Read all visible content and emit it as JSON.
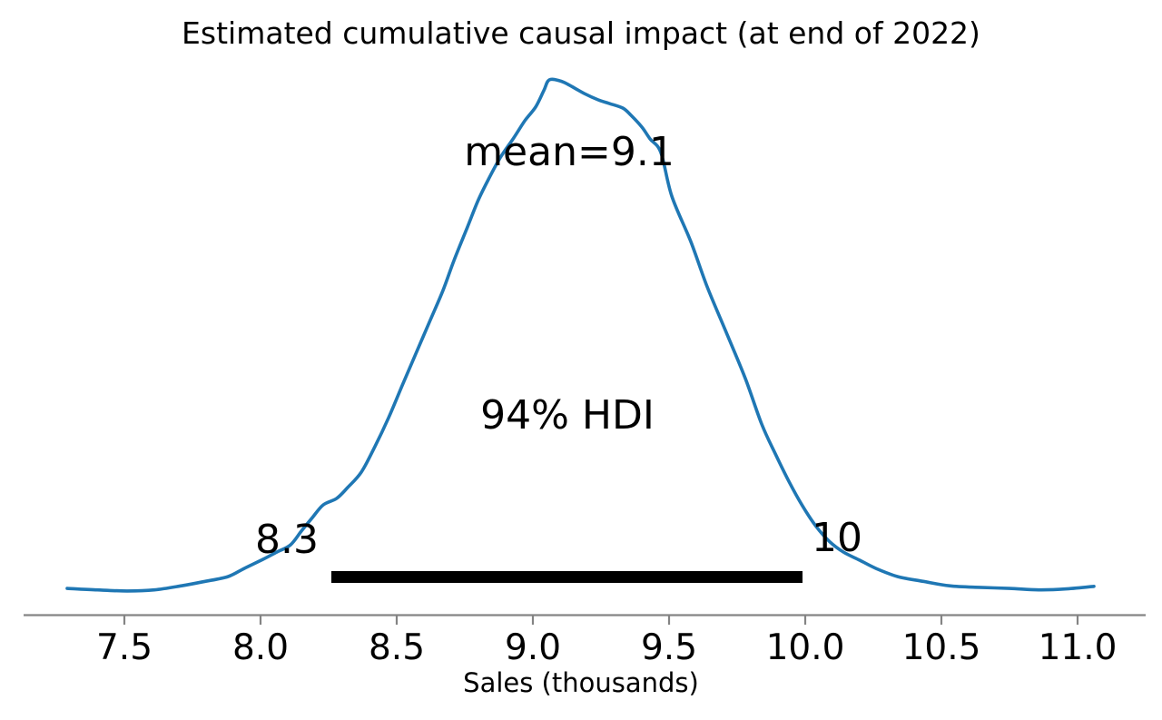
{
  "chart_data": {
    "type": "line",
    "subtype": "kde-posterior",
    "title": "Estimated cumulative causal impact (at end of 2022)",
    "xlabel": "Sales (thousands)",
    "ylabel": "",
    "grid": false,
    "legend": false,
    "xlim": [
      7.13,
      11.25
    ],
    "xticks": [
      7.5,
      8.0,
      8.5,
      9.0,
      9.5,
      10.0,
      10.5,
      11.0
    ],
    "xtick_labels": [
      "7.5",
      "8.0",
      "8.5",
      "9.0",
      "9.5",
      "10.0",
      "10.5",
      "11.0"
    ],
    "mean": {
      "value": 9.1,
      "label": "mean=9.1"
    },
    "hdi": {
      "probability": "94% HDI",
      "lower": 8.3,
      "upper": 10,
      "lower_label": "8.3",
      "upper_label": "10",
      "bar_from": 8.26,
      "bar_to": 9.99
    },
    "series": [
      {
        "name": "posterior density of cumulative causal impact",
        "x": [
          7.29,
          7.4,
          7.51,
          7.61,
          7.71,
          7.79,
          7.88,
          7.94,
          8.01,
          8.06,
          8.11,
          8.15,
          8.19,
          8.23,
          8.28,
          8.32,
          8.37,
          8.42,
          8.47,
          8.52,
          8.57,
          8.62,
          8.67,
          8.71,
          8.76,
          8.8,
          8.84,
          8.88,
          8.93,
          8.97,
          9.01,
          9.04,
          9.06,
          9.1,
          9.13,
          9.19,
          9.24,
          9.28,
          9.33,
          9.36,
          9.4,
          9.43,
          9.47,
          9.51,
          9.58,
          9.64,
          9.71,
          9.78,
          9.84,
          9.89,
          9.94,
          9.99,
          10.04,
          10.09,
          10.14,
          10.2,
          10.26,
          10.34,
          10.43,
          10.53,
          10.64,
          10.75,
          10.86,
          10.96,
          11.06
        ],
        "density": [
          0.007,
          0.004,
          0.002,
          0.004,
          0.012,
          0.02,
          0.03,
          0.046,
          0.064,
          0.078,
          0.092,
          0.119,
          0.145,
          0.17,
          0.183,
          0.204,
          0.234,
          0.284,
          0.34,
          0.403,
          0.465,
          0.527,
          0.589,
          0.647,
          0.713,
          0.766,
          0.809,
          0.848,
          0.887,
          0.92,
          0.947,
          0.979,
          1.0,
          0.998,
          0.991,
          0.973,
          0.961,
          0.954,
          0.945,
          0.931,
          0.908,
          0.885,
          0.858,
          0.773,
          0.684,
          0.596,
          0.507,
          0.417,
          0.328,
          0.27,
          0.216,
          0.168,
          0.128,
          0.098,
          0.078,
          0.062,
          0.046,
          0.03,
          0.021,
          0.012,
          0.009,
          0.007,
          0.004,
          0.006,
          0.011
        ]
      }
    ],
    "colors": {
      "kde_line": "#1f77b4",
      "hdi_bar": "#000000",
      "axis": "#848484",
      "text": "#000000",
      "background": "#ffffff"
    }
  }
}
